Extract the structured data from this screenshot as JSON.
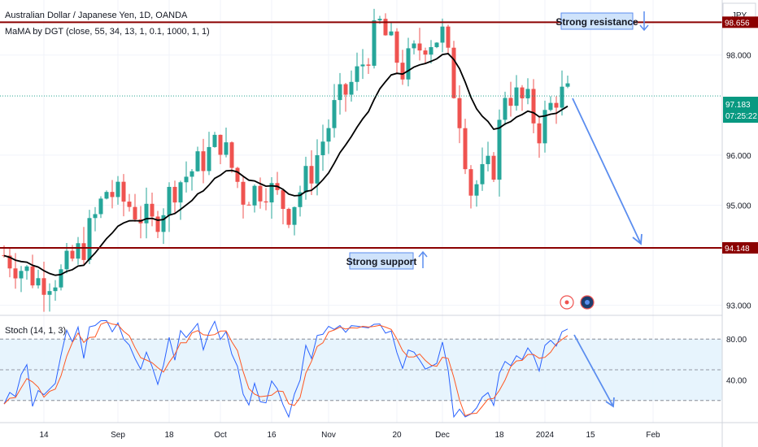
{
  "header": {
    "symbol_line": "Australian Dollar / Japanese Yen, 1D, OANDA",
    "indicator_line": "MaMA by DGT",
    "indicator_params": "(close, 55, 34, 13, 1, 0.1, 1000, 1, 1)",
    "currency": "JPY"
  },
  "stoch": {
    "label": "Stoch (14, 1, 3)"
  },
  "annotations": {
    "resistance_label": "Strong resistance",
    "support_label": "Strong support"
  },
  "price_tags": {
    "resistance": "98.656",
    "support": "94.148",
    "last_price": "97.183",
    "countdown": "07:25:22"
  },
  "colors": {
    "bull": "#26a69a",
    "bear": "#ef5350",
    "level_line": "#8b0000",
    "ma": "#000000",
    "stoch_k": "#2962ff",
    "stoch_d": "#ff5722",
    "arrow": "#5b8def",
    "band": "#e3f2fd",
    "last_price_tag": "#089981"
  },
  "chart_data": {
    "type": "candlestick",
    "price_axis": {
      "range": [
        92.8,
        99.1
      ],
      "ticks": [
        {
          "value": 98.0,
          "label": "98.000"
        },
        {
          "value": 96.0,
          "label": "96.000"
        },
        {
          "value": 95.0,
          "label": "95.000"
        },
        {
          "value": 93.0,
          "label": "93.000"
        }
      ]
    },
    "time_axis": {
      "ticks": [
        {
          "index": 7,
          "label": "14"
        },
        {
          "index": 20,
          "label": "Sep"
        },
        {
          "index": 29,
          "label": "18"
        },
        {
          "index": 38,
          "label": "Oct"
        },
        {
          "index": 47,
          "label": "16"
        },
        {
          "index": 57,
          "label": "Nov"
        },
        {
          "index": 69,
          "label": "20"
        },
        {
          "index": 77,
          "label": "Dec"
        },
        {
          "index": 87,
          "label": "18"
        },
        {
          "index": 95,
          "label": "2024"
        },
        {
          "index": 103,
          "label": "15"
        },
        {
          "index": 114,
          "label": "Feb"
        }
      ]
    },
    "levels": [
      {
        "name": "resistance",
        "value": 98.656
      },
      {
        "name": "support",
        "value": 94.148
      }
    ],
    "stoch_axis": {
      "range": [
        0,
        100
      ],
      "ticks": [
        {
          "value": 80,
          "label": "80.00"
        },
        {
          "value": 40,
          "label": "40.00"
        }
      ],
      "band": [
        20,
        80
      ]
    }
  }
}
